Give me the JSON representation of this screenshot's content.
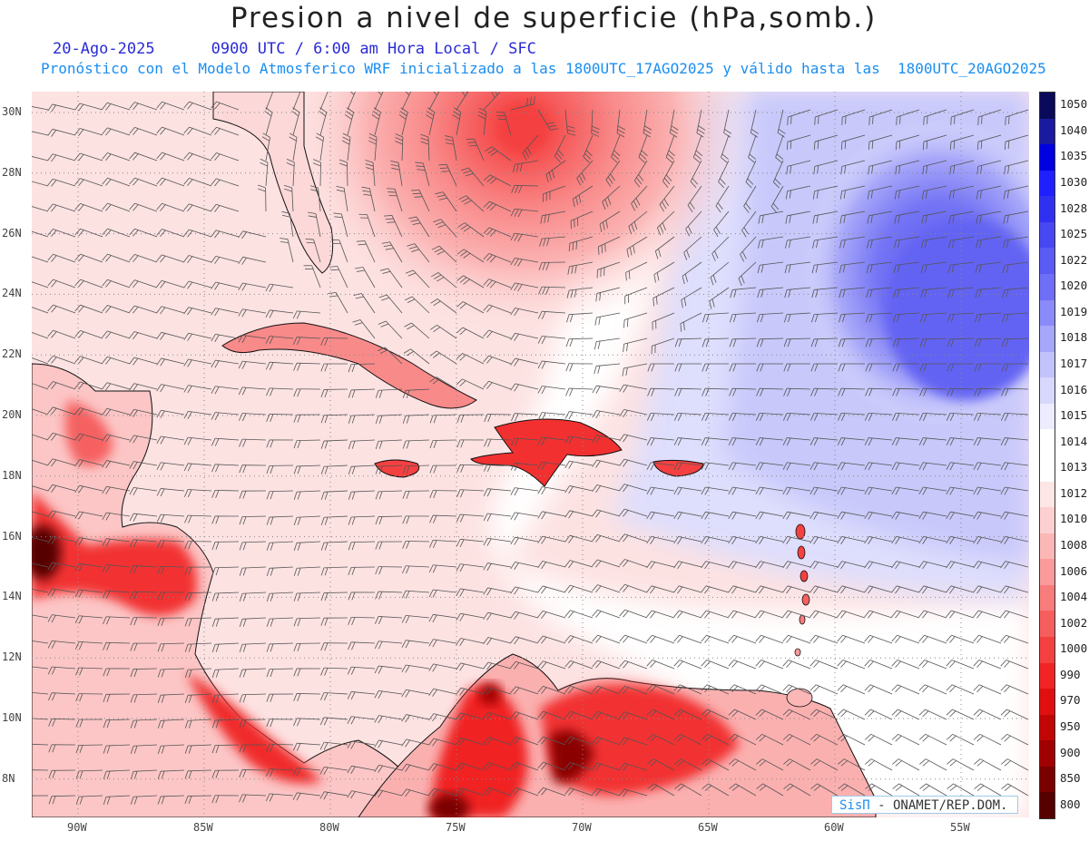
{
  "header": {
    "title": "Presion a nivel de superficie (hPa,somb.)",
    "date": "20-Ago-2025",
    "time_info": "0900 UTC / 6:00 am Hora Local / SFC",
    "forecast_info": "Pronóstico con el Modelo Atmosferico WRF inicializado a las 1800UTC_17AGO2025 y válido hasta las  1800UTC_20AGO2025"
  },
  "map": {
    "lat_labels": [
      "30N",
      "28N",
      "26N",
      "24N",
      "22N",
      "20N",
      "18N",
      "16N",
      "14N",
      "12N",
      "10N",
      "8N"
    ],
    "lon_labels": [
      "90W",
      "85W",
      "80W",
      "75W",
      "70W",
      "65W",
      "60W",
      "55W"
    ],
    "fields": {
      "low_pressure_color": "#ff2b2b",
      "high_pressure_color": "#6b6bf2",
      "neutral_color": "#ffffff"
    }
  },
  "colorbar": {
    "levels": [
      "1050",
      "1040",
      "1035",
      "1030",
      "1028",
      "1025",
      "1022",
      "1020",
      "1019",
      "1018",
      "1017",
      "1016",
      "1015",
      "1014",
      "1013",
      "1012",
      "1010",
      "1008",
      "1006",
      "1004",
      "1002",
      "1000",
      "990",
      "970",
      "950",
      "900",
      "850",
      "800"
    ],
    "colors": [
      "#0a0a5a",
      "#1a1aa0",
      "#0000e0",
      "#2020ff",
      "#3030f0",
      "#4848f2",
      "#5a5af4",
      "#6e6ef6",
      "#8a8af8",
      "#a6a6fa",
      "#c2c2fc",
      "#d8d8fd",
      "#ececfe",
      "#ffffff",
      "#ffffff",
      "#fde6e6",
      "#fcd0d0",
      "#fbb6b6",
      "#fa9a9a",
      "#f87c7c",
      "#f65e5e",
      "#f44040",
      "#f02424",
      "#e01010",
      "#c20606",
      "#a00000",
      "#7a0000",
      "#560000"
    ]
  },
  "credit": {
    "brand": "SisΠ",
    "text": " - ONAMET/REP.DOM."
  }
}
